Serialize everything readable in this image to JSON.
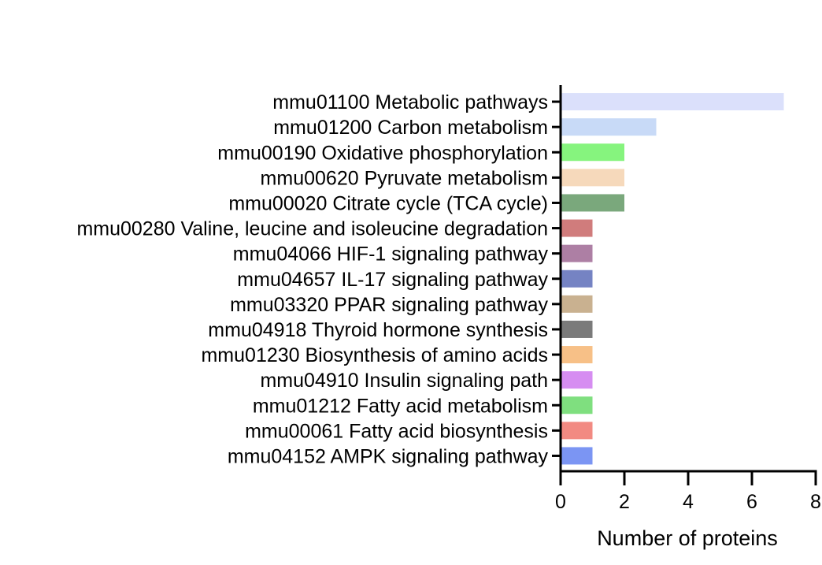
{
  "chart_data": {
    "type": "bar",
    "orientation": "horizontal",
    "categories": [
      "mmu01100 Metabolic pathways",
      "mmu01200 Carbon metabolism",
      "mmu00190 Oxidative phosphorylation",
      "mmu00620 Pyruvate metabolism",
      "mmu00020 Citrate cycle (TCA cycle)",
      "mmu00280 Valine, leucine and isoleucine degradation",
      "mmu04066 HIF-1 signaling pathway",
      "mmu04657 IL-17 signaling pathway",
      "mmu03320 PPAR signaling pathway",
      "mmu04918 Thyroid hormone synthesis",
      "mmu01230 Biosynthesis of amino acids",
      "mmu04910 Insulin signaling path",
      "mmu01212 Fatty acid metabolism",
      "mmu00061 Fatty acid biosynthesis",
      "mmu04152 AMPK signaling pathway"
    ],
    "values": [
      7,
      3,
      2,
      2,
      2,
      1,
      1,
      1,
      1,
      1,
      1,
      1,
      1,
      1,
      1
    ],
    "colors": [
      "#dbe0fb",
      "#c8daf7",
      "#86f47e",
      "#f6d9bb",
      "#7aa87c",
      "#d07c7c",
      "#ad7fa4",
      "#7583c3",
      "#c9b190",
      "#7a7a7a",
      "#f7c087",
      "#d68df1",
      "#7fdf7f",
      "#f28a82",
      "#7b95f3"
    ],
    "xlabel": "Number of proteins",
    "ylabel": "",
    "title": "",
    "xlim": [
      0,
      8
    ],
    "xticks": [
      0,
      2,
      4,
      6,
      8
    ],
    "grid": false,
    "legend": "none"
  }
}
